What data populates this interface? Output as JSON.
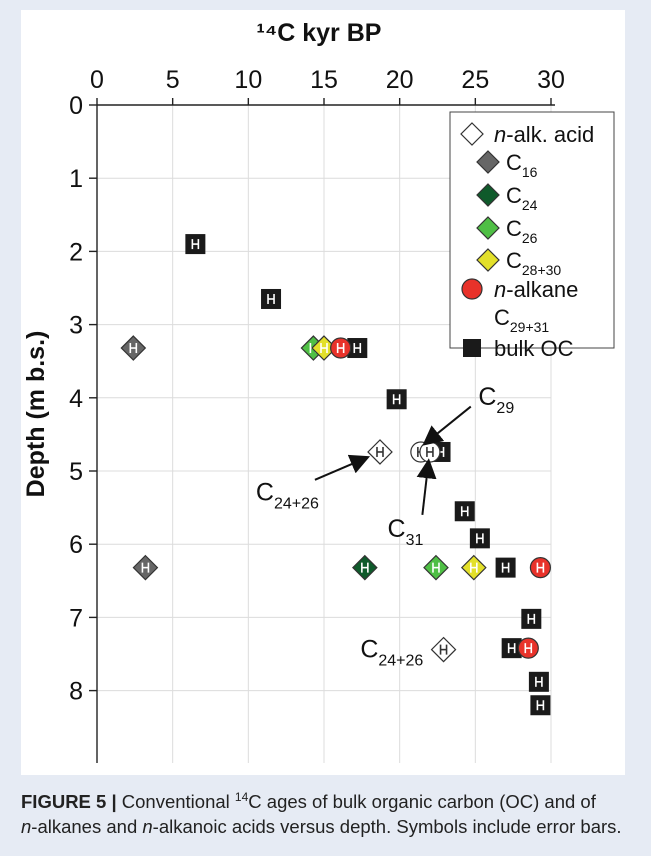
{
  "caption": {
    "label": "FIGURE 5 |",
    "part1": " Conventional ",
    "sup": "14",
    "part2": "C ages of bulk organic carbon (OC) and of",
    "line2_it1": "n",
    "line2_a": "-alkanes and ",
    "line2_it2": "n",
    "line2_b": "-alkanoic acids versus depth. Symbols include error bars."
  },
  "chart_data": {
    "type": "scatter",
    "title": "",
    "xlabel": "¹⁴C kyr BP",
    "ylabel": "Depth (m b.s.)",
    "xlim": [
      0,
      30
    ],
    "ylim": [
      0,
      9
    ],
    "y_inverted": true,
    "x_ticks": [
      0,
      5,
      10,
      15,
      20,
      25,
      30
    ],
    "y_ticks": [
      0,
      1,
      2,
      3,
      4,
      5,
      6,
      7,
      8
    ],
    "grid": true,
    "legend_position": "top-right",
    "colors": {
      "n_alk_acid": "#ffffff",
      "C16": "#666666",
      "C24": "#0f5a2b",
      "C26": "#4fbf45",
      "C28_30": "#e3e02a",
      "n_alkane": "#e8322a",
      "bulk_OC": "#1a1a1a"
    },
    "legend": [
      {
        "key": "n_alk_acid",
        "shape": "diamond",
        "text_it": "n",
        "text": "-alk. acid",
        "sub": ""
      },
      {
        "key": "C16",
        "shape": "diamond",
        "text_it": "",
        "text": "C",
        "sub": "16"
      },
      {
        "key": "C24",
        "shape": "diamond",
        "text_it": "",
        "text": "C",
        "sub": "24"
      },
      {
        "key": "C26",
        "shape": "diamond",
        "text_it": "",
        "text": "C",
        "sub": "26"
      },
      {
        "key": "C28_30",
        "shape": "diamond",
        "text_it": "",
        "text": "C",
        "sub": "28+30"
      },
      {
        "key": "n_alkane",
        "shape": "circle",
        "text_it": "n",
        "text": "-alkane",
        "sub": ""
      },
      {
        "key": "n_alkane_sub",
        "shape": "none",
        "text_it": "",
        "text": "C",
        "sub": "29+31"
      },
      {
        "key": "bulk_OC",
        "shape": "square",
        "text_it": "",
        "text": "bulk OC",
        "sub": ""
      }
    ],
    "series": [
      {
        "key": "bulk_OC",
        "shape": "square",
        "points": [
          {
            "x": 6.5,
            "y": 1.9
          },
          {
            "x": 11.5,
            "y": 2.65
          },
          {
            "x": 17.2,
            "y": 3.32
          },
          {
            "x": 19.8,
            "y": 4.02
          },
          {
            "x": 22.7,
            "y": 4.74
          },
          {
            "x": 24.3,
            "y": 5.55
          },
          {
            "x": 25.3,
            "y": 5.92
          },
          {
            "x": 27.0,
            "y": 6.32
          },
          {
            "x": 28.7,
            "y": 7.02
          },
          {
            "x": 27.4,
            "y": 7.42
          },
          {
            "x": 29.2,
            "y": 7.88
          },
          {
            "x": 29.3,
            "y": 8.2
          }
        ]
      },
      {
        "key": "n_alk_acid",
        "shape": "diamond",
        "points": [
          {
            "x": 18.7,
            "y": 4.74
          },
          {
            "x": 22.9,
            "y": 7.44
          }
        ]
      },
      {
        "key": "C16",
        "shape": "diamond",
        "points": [
          {
            "x": 2.4,
            "y": 3.32
          },
          {
            "x": 3.2,
            "y": 6.32
          }
        ]
      },
      {
        "key": "C24",
        "shape": "diamond",
        "points": [
          {
            "x": 17.7,
            "y": 6.32
          }
        ]
      },
      {
        "key": "C26",
        "shape": "diamond",
        "points": [
          {
            "x": 14.3,
            "y": 3.32
          },
          {
            "x": 22.4,
            "y": 6.32
          }
        ]
      },
      {
        "key": "C28_30",
        "shape": "diamond",
        "points": [
          {
            "x": 15.0,
            "y": 3.32
          },
          {
            "x": 24.9,
            "y": 6.32
          }
        ]
      },
      {
        "key": "n_alkane",
        "shape": "circle",
        "points": [
          {
            "x": 16.1,
            "y": 3.32
          },
          {
            "x": 21.4,
            "y": 4.74
          },
          {
            "x": 22.0,
            "y": 4.74
          },
          {
            "x": 29.3,
            "y": 6.32
          },
          {
            "x": 28.5,
            "y": 7.42
          }
        ]
      }
    ],
    "annotations": [
      {
        "base": "C",
        "sub": "29",
        "x": 25.2,
        "y": 4.1
      },
      {
        "base": "C",
        "sub": "31",
        "x": 19.2,
        "y": 5.9
      },
      {
        "base": "C",
        "sub": "24+26",
        "x": 10.5,
        "y": 5.4
      },
      {
        "base": "C",
        "sub": "24+26",
        "x": 17.4,
        "y": 7.55
      }
    ]
  }
}
